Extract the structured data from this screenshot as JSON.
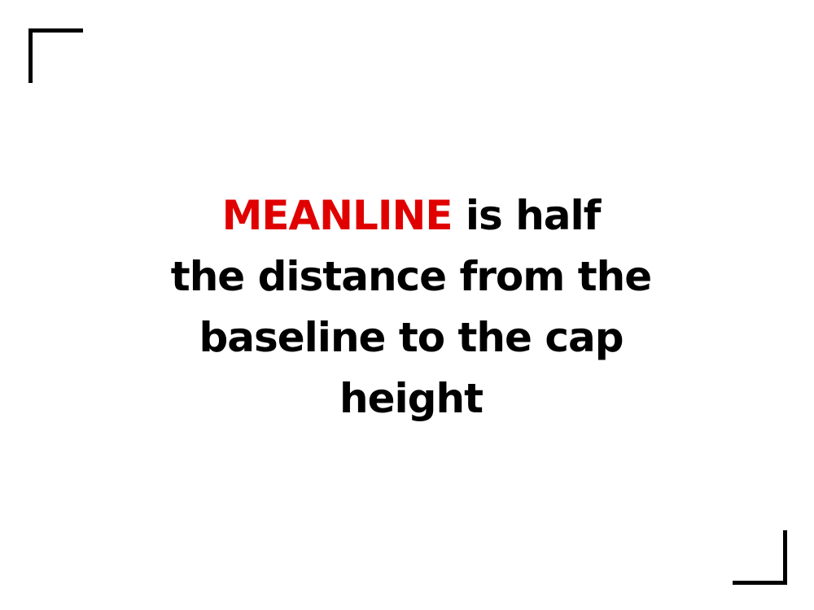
{
  "slide": {
    "highlight_word": "MEANLINE",
    "line1_rest": " is half",
    "line2": "the distance from the",
    "line3": "baseline to the cap",
    "line4": "height"
  },
  "colors": {
    "highlight": "#e00000",
    "text": "#000000",
    "background": "#ffffff",
    "corner_marks": "#000000"
  }
}
